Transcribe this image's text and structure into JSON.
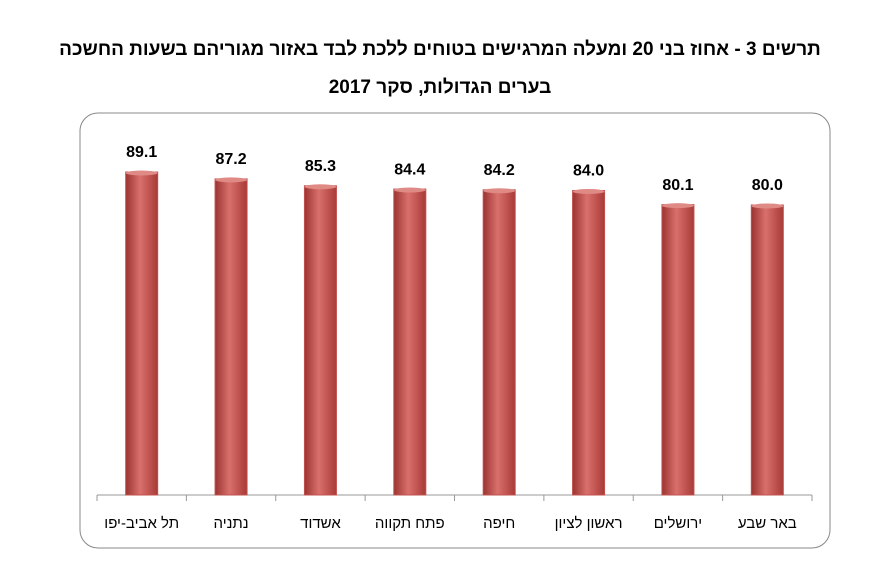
{
  "chart_data": {
    "type": "bar",
    "title": [
      "תרשים 3 - אחוז בני 20 ומעלה המרגישים בטוחים ללכת לבד באזור מגוריהם בשעות החשכה",
      "בערים הגדולות, סקר 2017"
    ],
    "categories": [
      "תל אביב-יפו",
      "נתניה",
      "אשדוד",
      "פתח תקווה",
      "חיפה",
      "ראשון לציון",
      "ירושלים",
      "באר שבע"
    ],
    "values": [
      89.1,
      87.2,
      85.3,
      84.4,
      84.2,
      84.0,
      80.1,
      80.0
    ],
    "value_labels": [
      "89.1",
      "87.2",
      "85.3",
      "84.4",
      "84.2",
      "84.0",
      "80.1",
      "80.0"
    ],
    "color": "#c0504d"
  }
}
